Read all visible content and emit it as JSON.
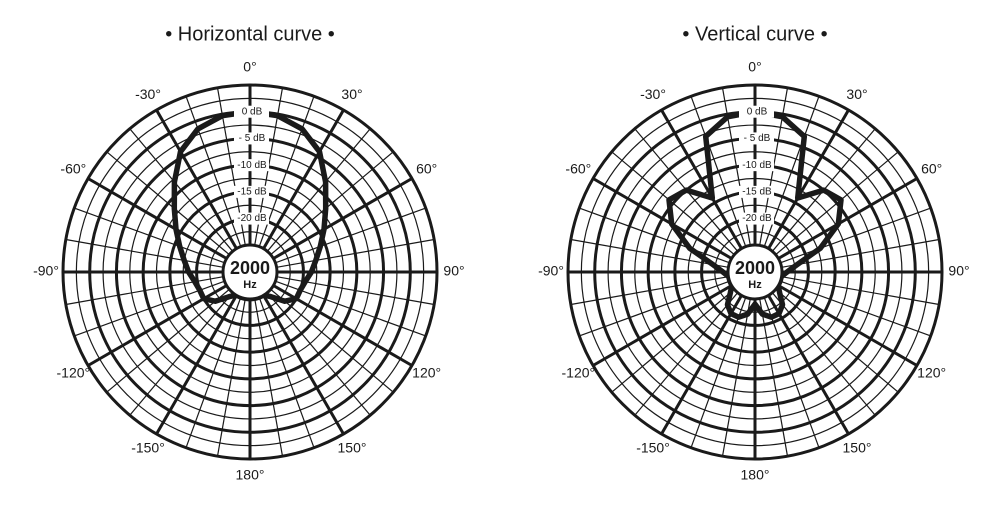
{
  "chart_data": [
    {
      "type": "polar",
      "title": "• Horizontal curve •",
      "center_label": "2000",
      "center_unit": "Hz",
      "color": "#1a1a1a",
      "theta": [
        -170,
        -160,
        -150,
        -140,
        -130,
        -120,
        -110,
        -100,
        -90,
        -80,
        -70,
        -60,
        -50,
        -40,
        -30,
        -20,
        -10,
        0,
        10,
        20,
        30,
        40,
        50,
        60,
        70,
        80,
        90,
        100,
        110,
        120,
        130,
        140,
        150,
        160,
        170,
        180
      ],
      "values": [
        -25,
        -25,
        -25,
        -24,
        -21.5,
        -20,
        -20,
        -19.5,
        -18.5,
        -17.5,
        -16,
        -14,
        -11.5,
        -8,
        -4,
        -1.5,
        -0.3,
        0,
        -0.3,
        -1.5,
        -4,
        -8,
        -11.5,
        -14,
        -16,
        -17.5,
        -18.5,
        -19.5,
        -20,
        -20,
        -21.5,
        -24,
        -25,
        -25,
        -25,
        -25
      ],
      "rlim": [
        -30,
        5
      ],
      "rticks": [
        {
          "value": 0,
          "label": "0 dB"
        },
        {
          "value": -5,
          "label": "- 5 dB"
        },
        {
          "value": -10,
          "label": "-10 dB"
        },
        {
          "value": -15,
          "label": "-15 dB"
        },
        {
          "value": -20,
          "label": "-20 dB"
        }
      ],
      "thetaticks": [
        {
          "value": 0,
          "label": "0°"
        },
        {
          "value": 30,
          "label": "30°"
        },
        {
          "value": 60,
          "label": "60°"
        },
        {
          "value": 90,
          "label": "90°"
        },
        {
          "value": 120,
          "label": "120°"
        },
        {
          "value": 150,
          "label": "150°"
        },
        {
          "value": 180,
          "label": "180°"
        },
        {
          "value": -150,
          "label": "-150°"
        },
        {
          "value": -120,
          "label": "-120°"
        },
        {
          "value": -90,
          "label": "-90°"
        },
        {
          "value": -60,
          "label": "-60°"
        },
        {
          "value": -30,
          "label": "-30°"
        }
      ]
    },
    {
      "type": "polar",
      "title": "• Vertical curve •",
      "center_label": "2000",
      "center_unit": "Hz",
      "color": "#1a1a1a",
      "theta": [
        -170,
        -160,
        -150,
        -140,
        -130,
        -120,
        -110,
        -100,
        -90,
        -80,
        -70,
        -60,
        -50,
        -40,
        -30,
        -20,
        -10,
        0,
        10,
        20,
        30,
        40,
        50,
        60,
        70,
        80,
        90,
        100,
        110,
        120,
        130,
        140,
        150,
        160,
        170,
        180
      ],
      "values": [
        -22,
        -21,
        -21,
        -22,
        -24,
        -25,
        -25,
        -25,
        -24,
        -22,
        -17,
        -12,
        -9,
        -10,
        -14,
        -3,
        -0.5,
        0,
        -0.5,
        -3,
        -14,
        -10,
        -9,
        -12,
        -17,
        -22,
        -24,
        -25,
        -25,
        -25,
        -24,
        -22,
        -21,
        -21,
        -22,
        -24
      ],
      "rlim": [
        -30,
        5
      ],
      "rticks": [
        {
          "value": 0,
          "label": "0 dB"
        },
        {
          "value": -5,
          "label": "- 5 dB"
        },
        {
          "value": -10,
          "label": "-10 dB"
        },
        {
          "value": -15,
          "label": "-15 dB"
        },
        {
          "value": -20,
          "label": "-20 dB"
        }
      ],
      "thetaticks": [
        {
          "value": 0,
          "label": "0°"
        },
        {
          "value": 30,
          "label": "30°"
        },
        {
          "value": 60,
          "label": "60°"
        },
        {
          "value": 90,
          "label": "90°"
        },
        {
          "value": 120,
          "label": "120°"
        },
        {
          "value": 150,
          "label": "150°"
        },
        {
          "value": 180,
          "label": "180°"
        },
        {
          "value": -150,
          "label": "-150°"
        },
        {
          "value": -120,
          "label": "-120°"
        },
        {
          "value": -90,
          "label": "-90°"
        },
        {
          "value": -60,
          "label": "-60°"
        },
        {
          "value": -30,
          "label": "-30°"
        }
      ]
    }
  ]
}
